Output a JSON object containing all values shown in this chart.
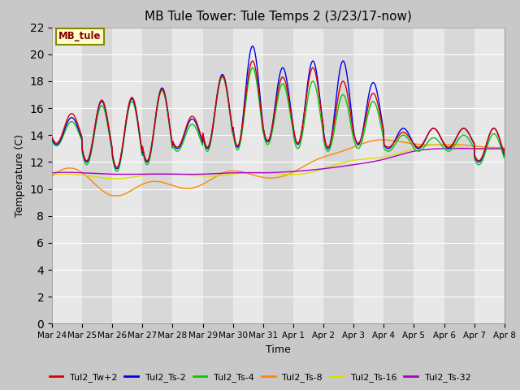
{
  "title": "MB Tule Tower: Tule Temps 2 (3/23/17-now)",
  "xlabel": "Time",
  "ylabel": "Temperature (C)",
  "ylim": [
    0,
    22
  ],
  "yticks": [
    0,
    2,
    4,
    6,
    8,
    10,
    12,
    14,
    16,
    18,
    20,
    22
  ],
  "series_colors": {
    "Tul2_Tw+2": "#dd0000",
    "Tul2_Ts-2": "#0000ee",
    "Tul2_Ts-4": "#00cc00",
    "Tul2_Ts-8": "#ff8800",
    "Tul2_Ts-16": "#dddd00",
    "Tul2_Ts-32": "#aa00cc"
  },
  "station_label": "MB_tule",
  "station_label_color": "#880000",
  "station_bg": "#ffffcc",
  "station_border": "#888800",
  "x_tick_labels": [
    "Mar 24",
    "Mar 25",
    "Mar 26",
    "Mar 27",
    "Mar 28",
    "Mar 29",
    "Mar 30",
    "Mar 31",
    "Apr 1",
    "Apr 2",
    "Apr 3",
    "Apr 4",
    "Apr 5",
    "Apr 6",
    "Apr 7",
    "Apr 8"
  ],
  "bg_outer": "#c8c8c8",
  "bg_inner_light": "#e8e8e8",
  "bg_inner_dark": "#d8d8d8",
  "grid_color": "#ffffff"
}
